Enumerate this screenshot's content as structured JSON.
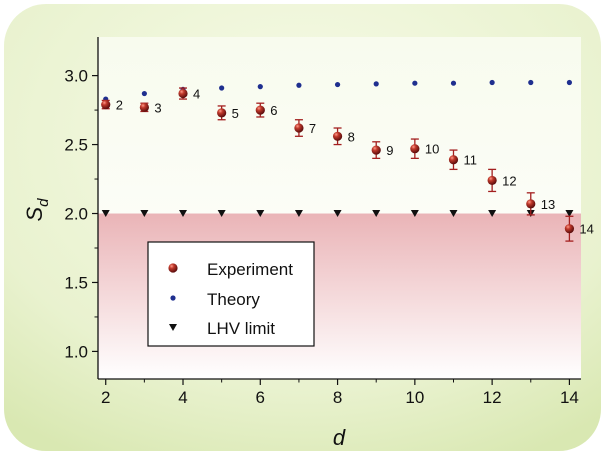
{
  "chart_data": {
    "type": "scatter",
    "xlabel": "d",
    "ylabel_main": "S",
    "ylabel_sub": "d",
    "xlim": [
      1.8,
      14.3
    ],
    "ylim": [
      0.8,
      3.28
    ],
    "xticks": [
      2,
      4,
      6,
      8,
      10,
      12,
      14
    ],
    "xtick_labels": [
      "2",
      "4",
      "6",
      "8",
      "10",
      "12",
      "14"
    ],
    "yticks": [
      1.0,
      1.5,
      2.0,
      2.5,
      3.0
    ],
    "ytick_labels": [
      "1.0",
      "1.5",
      "2.0",
      "2.5",
      "3.0"
    ],
    "grid": false,
    "legend_position": "lower-left",
    "shaded_region": {
      "y_from": 0.8,
      "y_to": 2.0,
      "color": "#e8a9ad"
    },
    "series": [
      {
        "name": "Experiment",
        "marker": "sphere",
        "color": "#9b1c1c",
        "x": [
          2,
          3,
          4,
          5,
          6,
          7,
          8,
          9,
          10,
          11,
          12,
          13,
          14
        ],
        "y": [
          2.79,
          2.77,
          2.87,
          2.73,
          2.75,
          2.62,
          2.56,
          2.46,
          2.47,
          2.39,
          2.24,
          2.07,
          1.89
        ],
        "err": [
          0.03,
          0.03,
          0.04,
          0.05,
          0.05,
          0.06,
          0.06,
          0.06,
          0.07,
          0.07,
          0.08,
          0.08,
          0.09
        ],
        "point_labels": [
          "2",
          "3",
          "4",
          "5",
          "6",
          "7",
          "8",
          "9",
          "10",
          "11",
          "12",
          "13",
          "14"
        ]
      },
      {
        "name": "Theory",
        "marker": "dot",
        "color": "#1f2f8f",
        "x": [
          2,
          3,
          4,
          5,
          6,
          7,
          8,
          9,
          10,
          11,
          12,
          13,
          14
        ],
        "y": [
          2.83,
          2.87,
          2.9,
          2.91,
          2.92,
          2.93,
          2.935,
          2.94,
          2.945,
          2.945,
          2.95,
          2.95,
          2.95
        ]
      },
      {
        "name": "LHV limit",
        "marker": "triangle-down",
        "color": "#111111",
        "x": [
          2,
          3,
          4,
          5,
          6,
          7,
          8,
          9,
          10,
          11,
          12,
          13,
          14
        ],
        "y": [
          2,
          2,
          2,
          2,
          2,
          2,
          2,
          2,
          2,
          2,
          2,
          2,
          2
        ]
      }
    ]
  }
}
